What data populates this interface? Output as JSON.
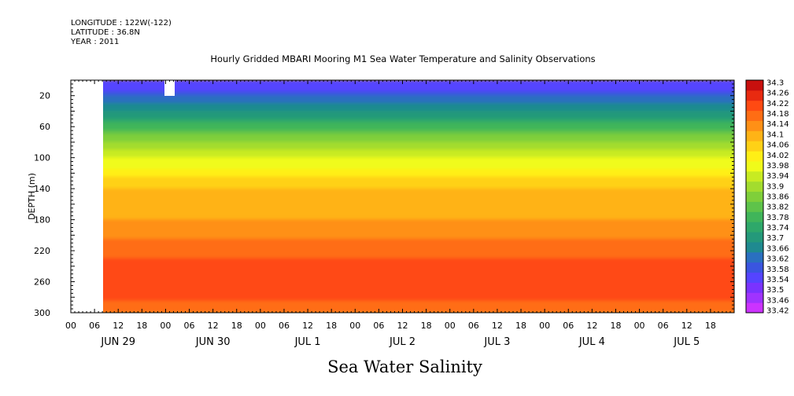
{
  "header": {
    "longitude": "LONGITUDE : 122W(-122)",
    "latitude": "LATITUDE : 36.8N",
    "year": "YEAR : 2011"
  },
  "chart_data": {
    "type": "heatmap",
    "title": "Hourly Gridded MBARI Mooring M1 Sea Water Temperature and Salinity Observations",
    "xlabel": "Sea Water Salinity",
    "ylabel": "DEPTH (m)",
    "x_range_hours": [
      0,
      168
    ],
    "x_hour_ticks": [
      "00",
      "06",
      "12",
      "18",
      "00",
      "06",
      "12",
      "18",
      "00",
      "06",
      "12",
      "18",
      "00",
      "06",
      "12",
      "18",
      "00",
      "06",
      "12",
      "18",
      "00",
      "06",
      "12",
      "18",
      "00",
      "06",
      "12",
      "18"
    ],
    "x_day_labels": [
      "JUN 29",
      "JUN 30",
      "JUL  1",
      "JUL  2",
      "JUL  3",
      "JUL  4",
      "JUL  5"
    ],
    "ylim": [
      0,
      300
    ],
    "y_ticks": [
      20,
      60,
      100,
      140,
      180,
      220,
      260,
      300
    ],
    "y_tick_labels": [
      "20",
      "60",
      "100",
      "140",
      "180",
      "220",
      "260",
      "300"
    ],
    "colorbar": {
      "levels": [
        33.42,
        33.46,
        33.5,
        33.54,
        33.58,
        33.62,
        33.66,
        33.7,
        33.74,
        33.78,
        33.82,
        33.86,
        33.9,
        33.94,
        33.98,
        34.02,
        34.06,
        34.1,
        34.14,
        34.18,
        34.22,
        34.26,
        34.3
      ],
      "labels": [
        "34.3",
        "34.26",
        "34.22",
        "34.18",
        "34.14",
        "34.1",
        "34.06",
        "34.02",
        "33.98",
        "33.94",
        "33.9",
        "33.86",
        "33.82",
        "33.78",
        "33.74",
        "33.7",
        "33.66",
        "33.62",
        "33.58",
        "33.54",
        "33.5",
        "33.46",
        "33.42"
      ],
      "colors": [
        "#cc33ff",
        "#a033ff",
        "#7a33ff",
        "#5544ff",
        "#3a55e0",
        "#2a70c0",
        "#1f8a90",
        "#24997a",
        "#2ea86a",
        "#40b55a",
        "#5ec34a",
        "#7fcf3a",
        "#a3dc2e",
        "#c8eb22",
        "#f0fb1a",
        "#ffef16",
        "#ffd116",
        "#ffb316",
        "#ff9016",
        "#ff6d14",
        "#ff4a12",
        "#e82a10",
        "#c8100e"
      ]
    },
    "missing_data": "no data from JUN 29 00 to JUN 29 06 and near JUN 30 00 at the surface",
    "profile": [
      {
        "depth": 10,
        "salinity": 33.56
      },
      {
        "depth": 20,
        "salinity": 33.62
      },
      {
        "depth": 40,
        "salinity": 33.7
      },
      {
        "depth": 60,
        "salinity": 33.8
      },
      {
        "depth": 80,
        "salinity": 33.9
      },
      {
        "depth": 100,
        "salinity": 33.98
      },
      {
        "depth": 120,
        "salinity": 34.04
      },
      {
        "depth": 140,
        "salinity": 34.1
      },
      {
        "depth": 160,
        "salinity": 34.12
      },
      {
        "depth": 180,
        "salinity": 34.14
      },
      {
        "depth": 200,
        "salinity": 34.17
      },
      {
        "depth": 220,
        "salinity": 34.2
      },
      {
        "depth": 240,
        "salinity": 34.24
      },
      {
        "depth": 260,
        "salinity": 34.26
      },
      {
        "depth": 280,
        "salinity": 34.23
      },
      {
        "depth": 300,
        "salinity": 34.2
      }
    ]
  }
}
